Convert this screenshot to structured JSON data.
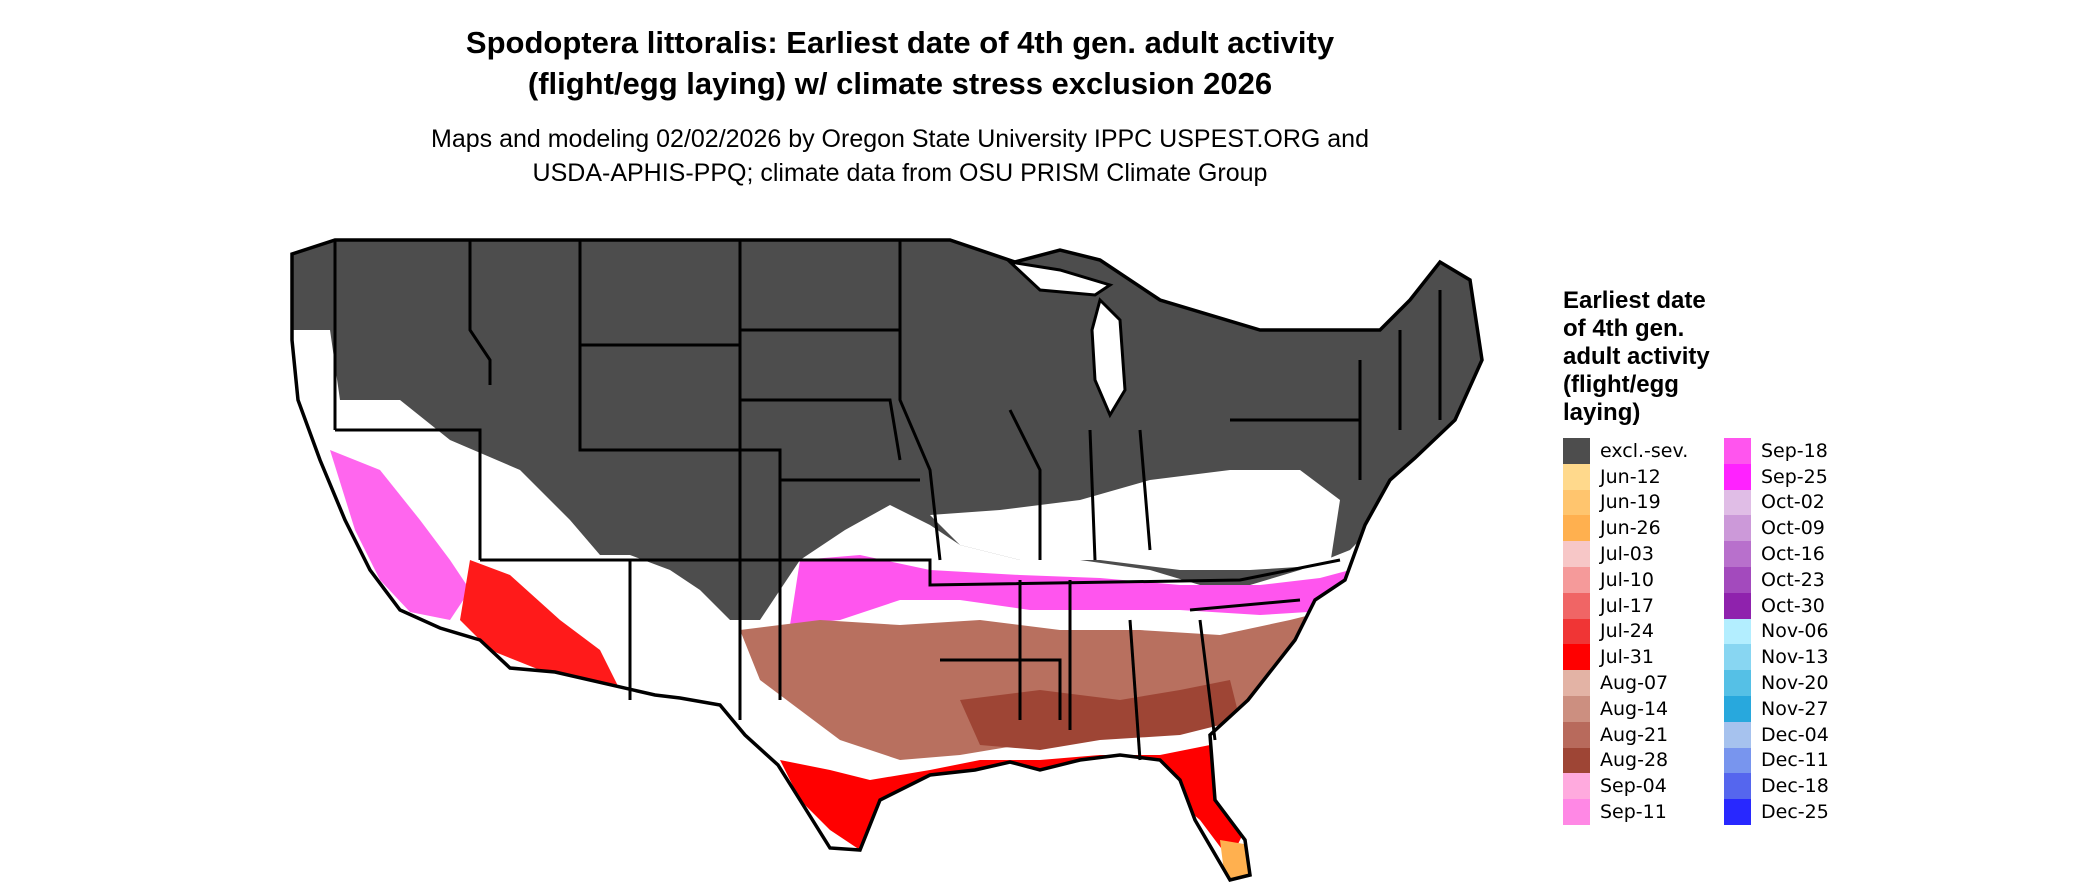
{
  "title_line1": "Spodoptera littoralis: Earliest date of 4th gen. adult activity",
  "title_line2": "(flight/egg laying) w/ climate stress exclusion 2026",
  "subtitle_line1": "Maps and modeling 02/02/2026 by Oregon State University IPPC USPEST.ORG and",
  "subtitle_line2": "USDA-APHIS-PPQ; climate data from OSU PRISM Climate Group",
  "legend": {
    "title_lines": [
      "Earliest date",
      "of 4th gen.",
      "adult activity",
      "(flight/egg",
      "laying)"
    ],
    "items": [
      {
        "label": "excl.-sev.",
        "color": "#4d4d4d"
      },
      {
        "label": "Jun-12",
        "color": "#ffd98c"
      },
      {
        "label": "Jun-19",
        "color": "#ffc56e"
      },
      {
        "label": "Jun-26",
        "color": "#ffb04f"
      },
      {
        "label": "Jul-03",
        "color": "#f7c7c7"
      },
      {
        "label": "Jul-10",
        "color": "#f59a9a"
      },
      {
        "label": "Jul-17",
        "color": "#f06565"
      },
      {
        "label": "Jul-24",
        "color": "#f03535"
      },
      {
        "label": "Jul-31",
        "color": "#ff0000"
      },
      {
        "label": "Aug-07",
        "color": "#e3b3a5"
      },
      {
        "label": "Aug-14",
        "color": "#cc8f80"
      },
      {
        "label": "Aug-21",
        "color": "#b86a5c"
      },
      {
        "label": "Aug-28",
        "color": "#9e4535"
      },
      {
        "label": "Sep-04",
        "color": "#ffaade"
      },
      {
        "label": "Sep-11",
        "color": "#ff88e5"
      },
      {
        "label": "Sep-18",
        "color": "#ff55ee"
      },
      {
        "label": "Sep-25",
        "color": "#ff22ff"
      },
      {
        "label": "Oct-02",
        "color": "#e0bde6"
      },
      {
        "label": "Oct-09",
        "color": "#cc99d9"
      },
      {
        "label": "Oct-16",
        "color": "#b870cc"
      },
      {
        "label": "Oct-23",
        "color": "#a34abd"
      },
      {
        "label": "Oct-30",
        "color": "#8f22ad"
      },
      {
        "label": "Nov-06",
        "color": "#b3eeff"
      },
      {
        "label": "Nov-13",
        "color": "#88d6f2"
      },
      {
        "label": "Nov-20",
        "color": "#55c0e6"
      },
      {
        "label": "Nov-27",
        "color": "#28a8dd"
      },
      {
        "label": "Dec-04",
        "color": "#a6c2ee"
      },
      {
        "label": "Dec-11",
        "color": "#7895ee"
      },
      {
        "label": "Dec-18",
        "color": "#5566ee"
      },
      {
        "label": "Dec-25",
        "color": "#2828ff"
      }
    ]
  }
}
